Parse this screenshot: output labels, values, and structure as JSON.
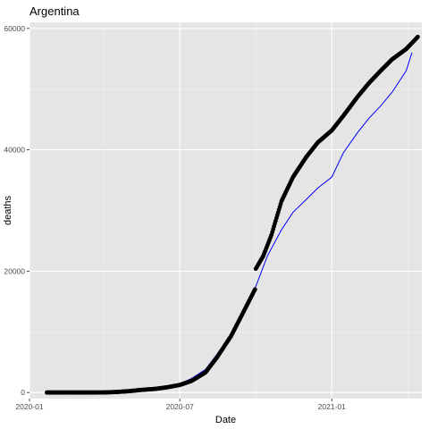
{
  "chart_data": {
    "type": "scatter",
    "title": "Argentina",
    "xlabel": "Date",
    "ylabel": "deaths",
    "xlim": [
      "2020-01-01",
      "2021-04-20"
    ],
    "ylim": [
      -1000,
      61000
    ],
    "x_ticks": [
      "2020-01-01",
      "2020-07-01",
      "2021-01-01"
    ],
    "x_tick_labels": [
      "2020-01",
      "2020-07",
      "2021-01"
    ],
    "y_ticks": [
      0,
      20000,
      40000,
      60000
    ],
    "y_tick_labels": [
      "0",
      "20000",
      "40000",
      "60000"
    ],
    "grid": true,
    "legend": "none",
    "colors": {
      "panel": "#e5e5e5",
      "points": "#000000",
      "line": "#0000ff"
    },
    "series": [
      {
        "kind": "points",
        "color": "#000000",
        "points": [
          [
            "2020-01-22",
            0
          ],
          [
            "2020-02-15",
            0
          ],
          [
            "2020-03-15",
            0
          ],
          [
            "2020-04-01",
            20
          ],
          [
            "2020-04-15",
            90
          ],
          [
            "2020-05-01",
            230
          ],
          [
            "2020-05-15",
            430
          ],
          [
            "2020-06-01",
            600
          ],
          [
            "2020-06-15",
            850
          ],
          [
            "2020-07-01",
            1250
          ],
          [
            "2020-07-15",
            1900
          ],
          [
            "2020-08-01",
            3300
          ],
          [
            "2020-08-15",
            5800
          ],
          [
            "2020-09-01",
            9300
          ],
          [
            "2020-09-15",
            13000
          ],
          [
            "2020-09-30",
            17000
          ],
          [
            "2020-10-01",
            20400
          ],
          [
            "2020-10-10",
            22500
          ],
          [
            "2020-10-20",
            26000
          ],
          [
            "2020-11-01",
            31500
          ],
          [
            "2020-11-15",
            35500
          ],
          [
            "2020-12-01",
            38800
          ],
          [
            "2020-12-15",
            41200
          ],
          [
            "2021-01-01",
            43200
          ],
          [
            "2021-01-15",
            45600
          ],
          [
            "2021-02-01",
            48700
          ],
          [
            "2021-02-15",
            51000
          ],
          [
            "2021-03-01",
            53000
          ],
          [
            "2021-03-15",
            54900
          ],
          [
            "2021-04-01",
            56600
          ],
          [
            "2021-04-15",
            58600
          ]
        ]
      },
      {
        "kind": "line",
        "color": "#0000ff",
        "points": [
          [
            "2020-01-22",
            0
          ],
          [
            "2020-03-15",
            0
          ],
          [
            "2020-04-15",
            80
          ],
          [
            "2020-05-15",
            400
          ],
          [
            "2020-06-15",
            900
          ],
          [
            "2020-07-01",
            1450
          ],
          [
            "2020-07-15",
            2300
          ],
          [
            "2020-08-01",
            3800
          ],
          [
            "2020-08-15",
            6300
          ],
          [
            "2020-09-01",
            9600
          ],
          [
            "2020-09-15",
            13000
          ],
          [
            "2020-10-01",
            17500
          ],
          [
            "2020-10-15",
            22500
          ],
          [
            "2020-11-01",
            26800
          ],
          [
            "2020-11-15",
            29700
          ],
          [
            "2020-12-01",
            31800
          ],
          [
            "2020-12-15",
            33700
          ],
          [
            "2021-01-01",
            35500
          ],
          [
            "2021-01-15",
            39500
          ],
          [
            "2021-02-01",
            42800
          ],
          [
            "2021-02-15",
            45200
          ],
          [
            "2021-03-01",
            47200
          ],
          [
            "2021-03-15",
            49500
          ],
          [
            "2021-04-01",
            53000
          ],
          [
            "2021-04-08",
            56000
          ]
        ]
      }
    ]
  }
}
